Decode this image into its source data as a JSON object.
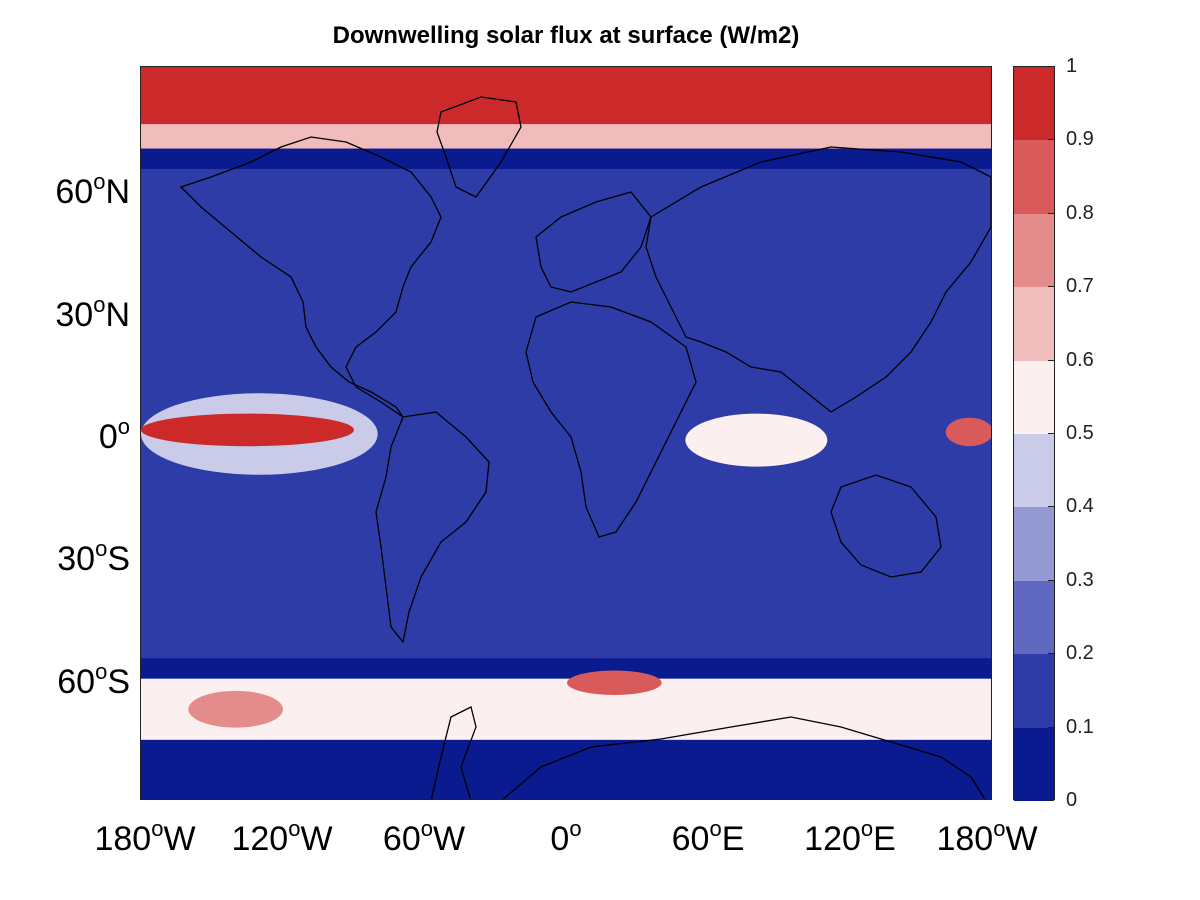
{
  "title": "Downwelling solar flux at surface (W/m2)",
  "lat_labels": [
    {
      "deg": "60",
      "sup": "o",
      "hemi": "N",
      "lat": 60
    },
    {
      "deg": "30",
      "sup": "o",
      "hemi": "N",
      "lat": 30
    },
    {
      "deg": "0",
      "sup": "o",
      "hemi": "",
      "lat": 0
    },
    {
      "deg": "30",
      "sup": "o",
      "hemi": "S",
      "lat": -30
    },
    {
      "deg": "60",
      "sup": "o",
      "hemi": "S",
      "lat": -60
    }
  ],
  "lon_labels": [
    {
      "deg": "180",
      "sup": "o",
      "hemi": "W",
      "lon": -180
    },
    {
      "deg": "120",
      "sup": "o",
      "hemi": "W",
      "lon": -120
    },
    {
      "deg": "60",
      "sup": "o",
      "hemi": "W",
      "lon": -60
    },
    {
      "deg": "0",
      "sup": "o",
      "hemi": "",
      "lon": 0
    },
    {
      "deg": "60",
      "sup": "o",
      "hemi": "E",
      "lon": 60
    },
    {
      "deg": "120",
      "sup": "o",
      "hemi": "E",
      "lon": 120
    },
    {
      "deg": "180",
      "sup": "o",
      "hemi": "W",
      "lon": 180
    }
  ],
  "colorbar": {
    "ticks": [
      "0",
      "0.1",
      "0.2",
      "0.3",
      "0.4",
      "0.5",
      "0.6",
      "0.7",
      "0.8",
      "0.9",
      "1"
    ],
    "colors": [
      "#0a1a8f",
      "#2e3ca8",
      "#6068bf",
      "#9599d3",
      "#c9cbe8",
      "#fbeff0",
      "#f1bcbc",
      "#e48c8c",
      "#d85a5a",
      "#cc2a2a"
    ]
  },
  "chart_data": {
    "type": "heatmap",
    "title": "Downwelling solar flux at surface (W/m2)",
    "xlim": [
      -180,
      180
    ],
    "ylim": [
      -90,
      90
    ],
    "clim": [
      0,
      1
    ],
    "levels": [
      0,
      0.1,
      0.2,
      0.3,
      0.4,
      0.5,
      0.6,
      0.7,
      0.8,
      0.9,
      1
    ],
    "features": [
      {
        "name": "arctic-band",
        "lon_range": [
          -180,
          180
        ],
        "lat_range": [
          75,
          90
        ],
        "value": 0.95
      },
      {
        "name": "arctic-edge",
        "lon_range": [
          -180,
          180
        ],
        "lat_range": [
          70,
          76
        ],
        "value": 0.6
      },
      {
        "name": "equatorial-pacific-high",
        "lon_range": [
          -180,
          -90
        ],
        "lat_range": [
          -3,
          5
        ],
        "value": 0.9
      },
      {
        "name": "equatorial-pacific-margin",
        "lon_range": [
          -180,
          -80
        ],
        "lat_range": [
          -10,
          10
        ],
        "value": 0.45
      },
      {
        "name": "equatorial-indian-ocean",
        "lon_range": [
          50,
          110
        ],
        "lat_range": [
          -8,
          5
        ],
        "value": 0.5
      },
      {
        "name": "western-pacific-high",
        "lon_range": [
          160,
          180
        ],
        "lat_range": [
          -3,
          4
        ],
        "value": 0.85
      },
      {
        "name": "southern-ocean-band",
        "lon_range": [
          -180,
          180
        ],
        "lat_range": [
          -75,
          -60
        ],
        "value": 0.55
      },
      {
        "name": "southern-ocean-peak-atlantic",
        "lon_range": [
          0,
          40
        ],
        "lat_range": [
          -64,
          -58
        ],
        "value": 0.85
      },
      {
        "name": "southern-ocean-peak-pacific",
        "lon_range": [
          -160,
          -120
        ],
        "lat_range": [
          -72,
          -63
        ],
        "value": 0.75
      },
      {
        "name": "mid-latitudes",
        "lon_range": [
          -180,
          180
        ],
        "lat_range": [
          -55,
          65
        ],
        "value": 0.1
      }
    ]
  }
}
